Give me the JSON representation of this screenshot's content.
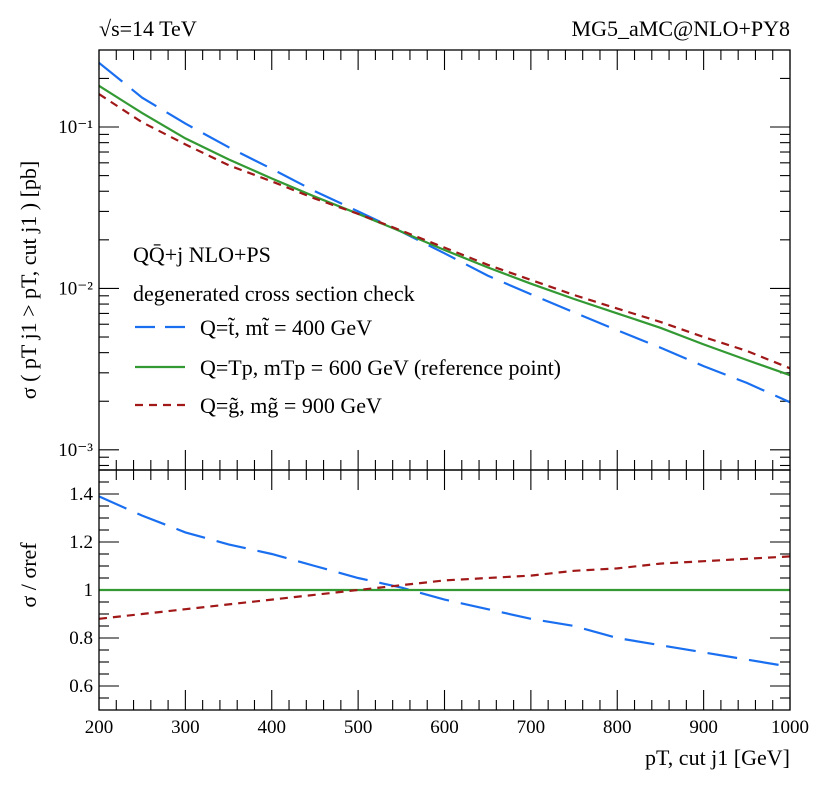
{
  "header": {
    "energy_label": "√s=14 TeV",
    "generator_label": "MG5_aMC@NLO+PY8"
  },
  "legend": {
    "title": "QQ̄+j  NLO+PS",
    "subtitle": "degenerated cross section check",
    "entries": [
      {
        "label": "Q=t̃, mt̃ = 400 GeV",
        "color": "#1a6ff0",
        "dash": "long-dash"
      },
      {
        "label": "Q=Tp, mTp = 600 GeV (reference point)",
        "color": "#339933",
        "dash": "solid"
      },
      {
        "label": "Q=g̃, mg̃ = 900 GeV",
        "color": "#a01818",
        "dash": "short-dash"
      }
    ]
  },
  "chart_data": [
    {
      "type": "line",
      "panel": "main",
      "ylabel": "σ ( pT j1 > pT, cut j1 ) [pb]",
      "yscale": "log",
      "ylim": [
        0.00075,
        0.3
      ],
      "xlim": [
        200,
        1000
      ],
      "yticks": [
        {
          "value": 0.001,
          "label": "10⁻³"
        },
        {
          "value": 0.01,
          "label": "10⁻²"
        },
        {
          "value": 0.1,
          "label": "10⁻¹"
        }
      ],
      "x": [
        200,
        250,
        300,
        350,
        400,
        450,
        500,
        550,
        600,
        650,
        700,
        750,
        800,
        850,
        900,
        950,
        1000
      ],
      "series": [
        {
          "name": "Q=t̃, mt̃ = 400 GeV",
          "values": [
            0.25,
            0.152,
            0.105,
            0.075,
            0.055,
            0.04,
            0.03,
            0.0225,
            0.0165,
            0.012,
            0.0092,
            0.0071,
            0.0055,
            0.0043,
            0.0033,
            0.0026,
            0.00197
          ]
        },
        {
          "name": "Q=Tp, mTp = 600 GeV (reference point)",
          "values": [
            0.18,
            0.122,
            0.085,
            0.063,
            0.048,
            0.037,
            0.029,
            0.0225,
            0.0173,
            0.0135,
            0.0107,
            0.0086,
            0.007,
            0.0057,
            0.0045,
            0.0036,
            0.0029
          ]
        },
        {
          "name": "Q=g̃, mg̃ = 900 GeV",
          "values": [
            0.16,
            0.107,
            0.078,
            0.058,
            0.046,
            0.036,
            0.029,
            0.0228,
            0.0179,
            0.014,
            0.0113,
            0.0091,
            0.0075,
            0.0062,
            0.005,
            0.0041,
            0.0032
          ]
        }
      ]
    },
    {
      "type": "line",
      "panel": "ratio",
      "ylabel": "σ / σref",
      "xlabel": "pT, cut j1 [GeV]",
      "ylim": [
        0.5,
        1.5
      ],
      "xlim": [
        200,
        1000
      ],
      "yticks": [
        {
          "value": 0.6,
          "label": "0.6"
        },
        {
          "value": 0.8,
          "label": "0.8"
        },
        {
          "value": 1.0,
          "label": "1"
        },
        {
          "value": 1.2,
          "label": "1.2"
        },
        {
          "value": 1.4,
          "label": "1.4"
        }
      ],
      "xticks": [
        200,
        300,
        400,
        500,
        600,
        700,
        800,
        900,
        1000
      ],
      "x": [
        200,
        250,
        300,
        350,
        400,
        450,
        500,
        550,
        600,
        650,
        700,
        750,
        800,
        850,
        900,
        950,
        1000
      ],
      "series": [
        {
          "name": "Q=t̃, mt̃ = 400 GeV",
          "values": [
            1.39,
            1.31,
            1.24,
            1.19,
            1.15,
            1.1,
            1.05,
            1.01,
            0.96,
            0.92,
            0.88,
            0.85,
            0.8,
            0.77,
            0.74,
            0.71,
            0.68
          ]
        },
        {
          "name": "Q=Tp, mTp = 600 GeV (reference point)",
          "values": [
            1,
            1,
            1,
            1,
            1,
            1,
            1,
            1,
            1,
            1,
            1,
            1,
            1,
            1,
            1,
            1,
            1
          ]
        },
        {
          "name": "Q=g̃, mg̃ = 900 GeV",
          "values": [
            0.88,
            0.9,
            0.92,
            0.94,
            0.96,
            0.98,
            1.0,
            1.02,
            1.04,
            1.05,
            1.06,
            1.08,
            1.09,
            1.11,
            1.12,
            1.13,
            1.14
          ]
        }
      ]
    }
  ]
}
